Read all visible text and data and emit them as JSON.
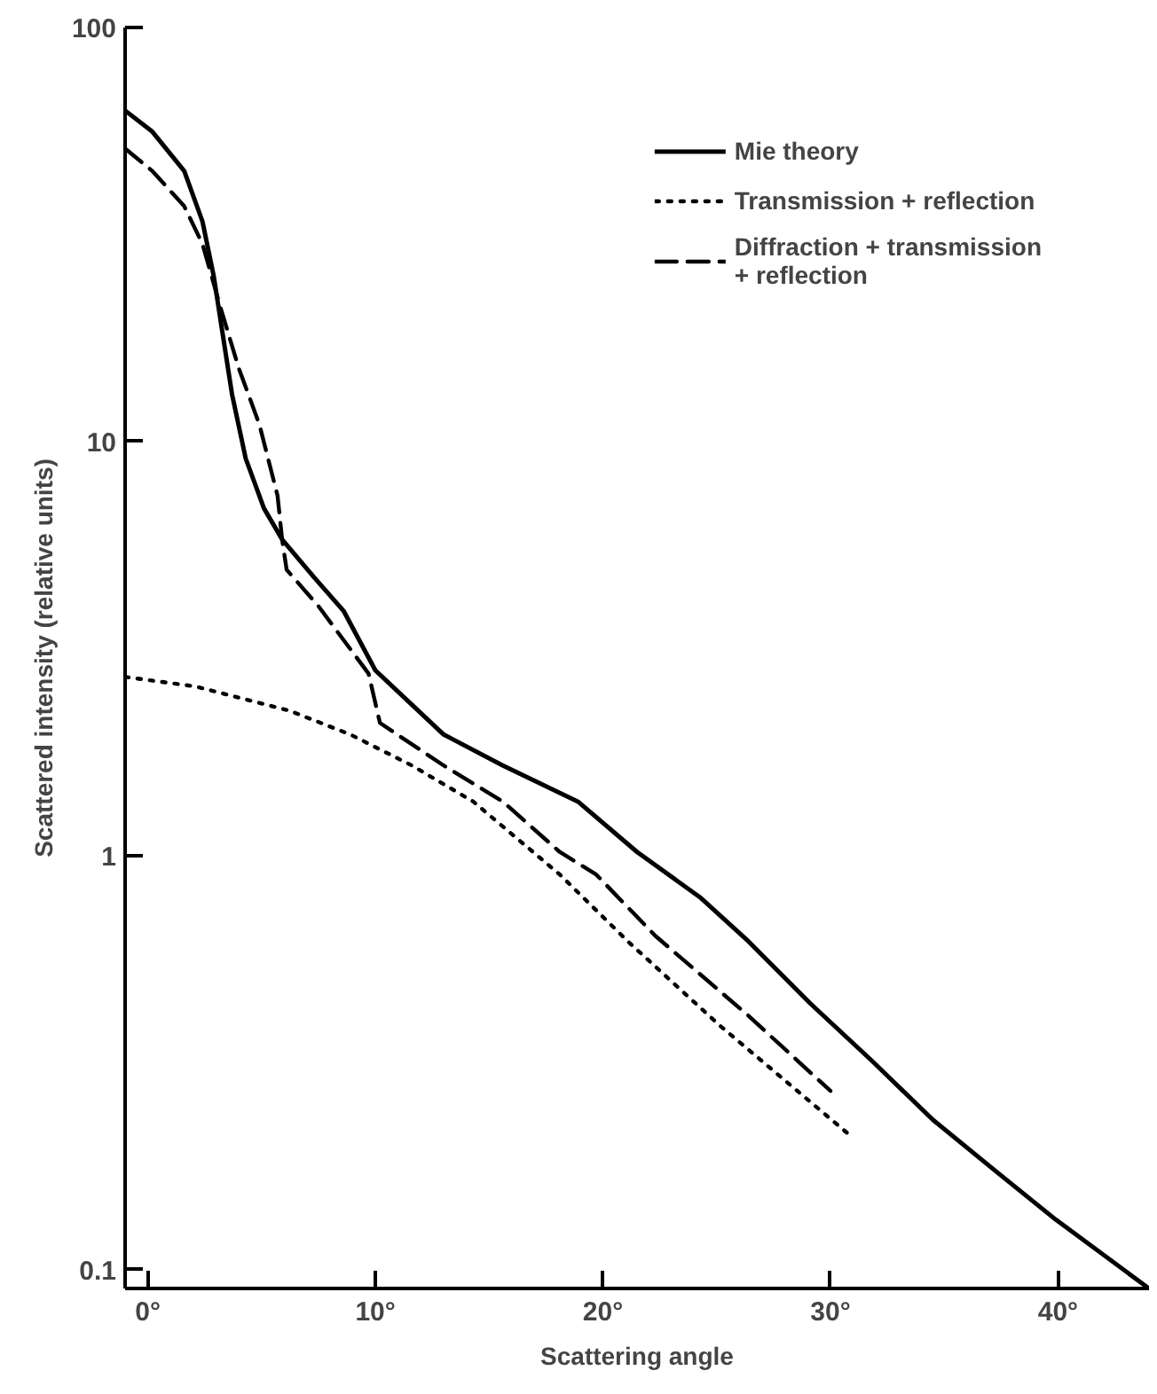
{
  "chart_data": {
    "type": "line",
    "xlabel": "Scattering angle",
    "ylabel": "Scattered intensity (relative units)",
    "log": "y",
    "grid": false,
    "legend": "top right",
    "marker": "none",
    "xlim": [
      -1,
      44
    ],
    "ylim": [
      0.09,
      100
    ],
    "xticks": [
      {
        "value": 0,
        "label": "0°"
      },
      {
        "value": 10,
        "label": "10°"
      },
      {
        "value": 20,
        "label": "20°"
      },
      {
        "value": 30,
        "label": "30°"
      },
      {
        "value": 40,
        "label": "40°"
      }
    ],
    "yticks": [
      0.1,
      1,
      10,
      100
    ],
    "series": [
      {
        "name": "Mie theory",
        "color": "#000000",
        "line_style": "solid",
        "x": [
          -1,
          0.2,
          1.6,
          2.4,
          2.9,
          3.3,
          3.7,
          4.3,
          5.1,
          5.9,
          7.3,
          8.6,
          10.0,
          13.0,
          15.6,
          18.9,
          21.5,
          24.3,
          26.4,
          29.1,
          31.8,
          34.5,
          37.2,
          39.9,
          44.0
        ],
        "values": [
          63,
          56,
          45,
          34,
          25,
          18,
          13,
          9.1,
          6.9,
          5.8,
          4.7,
          3.9,
          2.8,
          1.96,
          1.65,
          1.35,
          1.02,
          0.79,
          0.62,
          0.44,
          0.32,
          0.23,
          0.174,
          0.132,
          0.09
        ]
      },
      {
        "name": "Transmission + reflection",
        "color": "#000000",
        "line_style": "dotted",
        "x": [
          -1,
          2.1,
          6.2,
          8.9,
          11.6,
          14.3,
          18.1,
          21.1,
          25.1,
          30.9
        ],
        "values": [
          2.7,
          2.56,
          2.24,
          1.96,
          1.65,
          1.35,
          0.9,
          0.62,
          0.39,
          0.21
        ]
      },
      {
        "name": "Diffraction + transmission\n+ reflection",
        "color": "#000000",
        "line_style": "dashed",
        "x": [
          -1,
          0.2,
          1.6,
          2.4,
          3.2,
          4.0,
          4.9,
          5.7,
          5.9,
          6.1,
          7.5,
          9.7,
          10.2,
          13.0,
          15.6,
          18.1,
          19.7,
          22.3,
          26.4,
          30.0
        ],
        "values": [
          51,
          45,
          37,
          30,
          21,
          15,
          11,
          7.4,
          5.8,
          4.9,
          4.0,
          2.75,
          2.09,
          1.65,
          1.35,
          1.02,
          0.9,
          0.64,
          0.41,
          0.27
        ]
      }
    ]
  }
}
